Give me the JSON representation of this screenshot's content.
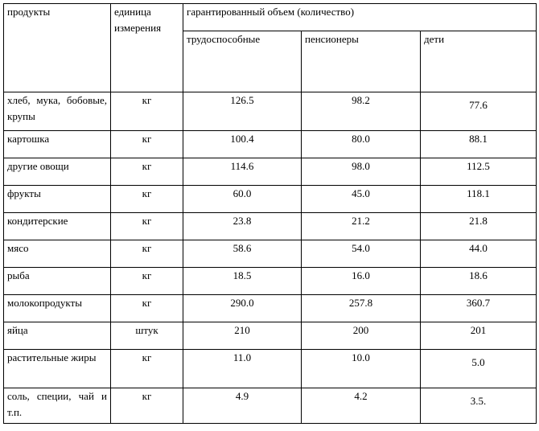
{
  "table": {
    "header": {
      "product": "продукты",
      "unit": "единица измерения",
      "volume": "гарантированный объем (количество)",
      "groups": [
        "трудоспособные",
        "пенсионеры",
        "дети"
      ]
    },
    "rows": [
      {
        "product": "хлеб, мука, бобовые, крупы",
        "unit": "кг",
        "values": [
          "126.5",
          "98.2",
          "77.6"
        ]
      },
      {
        "product": "картошка",
        "unit": "кг",
        "values": [
          "100.4",
          "80.0",
          "88.1"
        ]
      },
      {
        "product": "другие овощи",
        "unit": "кг",
        "values": [
          "114.6",
          "98.0",
          "112.5"
        ]
      },
      {
        "product": "фрукты",
        "unit": "кг",
        "values": [
          "60.0",
          "45.0",
          "118.1"
        ]
      },
      {
        "product": "кондитерские",
        "unit": "кг",
        "values": [
          "23.8",
          "21.2",
          "21.8"
        ]
      },
      {
        "product": "мясо",
        "unit": "кг",
        "values": [
          "58.6",
          "54.0",
          "44.0"
        ]
      },
      {
        "product": "рыба",
        "unit": "кг",
        "values": [
          "18.5",
          "16.0",
          "18.6"
        ]
      },
      {
        "product": "молокопродукты",
        "unit": "кг",
        "values": [
          "290.0",
          "257.8",
          "360.7"
        ]
      },
      {
        "product": "яйца",
        "unit": "штук",
        "values": [
          "210",
          "200",
          "201"
        ]
      },
      {
        "product": "растительные жиры",
        "unit": "кг",
        "values": [
          "11.0",
          "10.0",
          "5.0"
        ]
      },
      {
        "product": "соль, специи, чай и т.п.",
        "unit": "кг",
        "values": [
          "4.9",
          "4.2",
          "3.5."
        ]
      }
    ]
  }
}
